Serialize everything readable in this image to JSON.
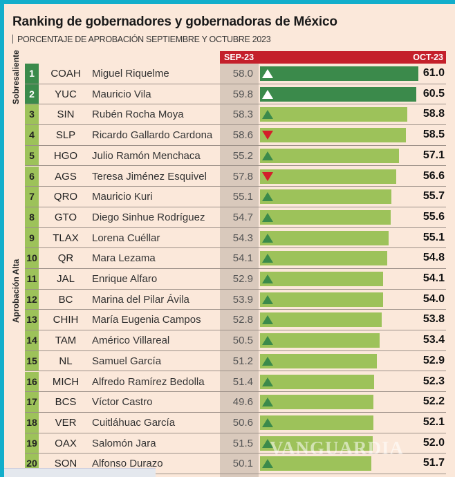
{
  "title": "Ranking de gobernadores y gobernadoras de México",
  "subtitle": "PORCENTAJE DE APROBACIÓN SEPTIEMBRE Y OCTUBRE 2023",
  "watermark": "VANGUARDIA",
  "colors": {
    "sobresaliente": "#3b8a4b",
    "aprobacion_alta": "#9dc25a",
    "header": "#c4202b",
    "up": "#3b8a4b",
    "down": "#d3202a",
    "border": "#12aecb"
  },
  "chart_data": {
    "type": "bar",
    "title": "Ranking de gobernadores y gobernadoras de México",
    "subtitle": "PORCENTAJE DE APROBACIÓN SEPTIEMBRE Y OCTUBRE 2023",
    "columns": [
      "SEP-23",
      "OCT-23"
    ],
    "groups": [
      {
        "label": "Sobresaliente",
        "ranks": [
          1,
          2
        ]
      },
      {
        "label": "Aprobación Alta",
        "ranks": [
          3,
          20
        ]
      }
    ],
    "rows": [
      {
        "rank": "1",
        "state": "COAH",
        "name": "Miguel Riquelme",
        "sep": "58.0",
        "oct": "61.0",
        "trend": "up"
      },
      {
        "rank": "2",
        "state": "YUC",
        "name": "Mauricio Vila",
        "sep": "59.8",
        "oct": "60.5",
        "trend": "up"
      },
      {
        "rank": "3",
        "state": "SIN",
        "name": "Rubén Rocha Moya",
        "sep": "58.3",
        "oct": "58.8",
        "trend": "up"
      },
      {
        "rank": "4",
        "state": "SLP",
        "name": "Ricardo Gallardo Cardona",
        "sep": "58.6",
        "oct": "58.5",
        "trend": "down"
      },
      {
        "rank": "5",
        "state": "HGO",
        "name": "Julio Ramón Menchaca",
        "sep": "55.2",
        "oct": "57.1",
        "trend": "up"
      },
      {
        "rank": "6",
        "state": "AGS",
        "name": "Teresa Jiménez Esquivel",
        "sep": "57.8",
        "oct": "56.6",
        "trend": "down"
      },
      {
        "rank": "7",
        "state": "QRO",
        "name": "Mauricio Kuri",
        "sep": "55.1",
        "oct": "55.7",
        "trend": "up"
      },
      {
        "rank": "8",
        "state": "GTO",
        "name": "Diego Sinhue Rodríguez",
        "sep": "54.7",
        "oct": "55.6",
        "trend": "up"
      },
      {
        "rank": "9",
        "state": "TLAX",
        "name": "Lorena Cuéllar",
        "sep": "54.3",
        "oct": "55.1",
        "trend": "up"
      },
      {
        "rank": "10",
        "state": "QR",
        "name": "Mara Lezama",
        "sep": "54.1",
        "oct": "54.8",
        "trend": "up"
      },
      {
        "rank": "11",
        "state": "JAL",
        "name": "Enrique Alfaro",
        "sep": "52.9",
        "oct": "54.1",
        "trend": "up"
      },
      {
        "rank": "12",
        "state": "BC",
        "name": "Marina del Pilar Ávila",
        "sep": "53.9",
        "oct": "54.0",
        "trend": "up"
      },
      {
        "rank": "13",
        "state": "CHIH",
        "name": "María Eugenia Campos",
        "sep": "52.8",
        "oct": "53.8",
        "trend": "up"
      },
      {
        "rank": "14",
        "state": "TAM",
        "name": "Américo Villareal",
        "sep": "50.5",
        "oct": "53.4",
        "trend": "up"
      },
      {
        "rank": "15",
        "state": "NL",
        "name": "Samuel García",
        "sep": "51.2",
        "oct": "52.9",
        "trend": "up"
      },
      {
        "rank": "16",
        "state": "MICH",
        "name": "Alfredo Ramírez Bedolla",
        "sep": "51.4",
        "oct": "52.3",
        "trend": "up"
      },
      {
        "rank": "17",
        "state": "BCS",
        "name": "Víctor Castro",
        "sep": "49.6",
        "oct": "52.2",
        "trend": "up"
      },
      {
        "rank": "18",
        "state": "VER",
        "name": "Cuitláhuac García",
        "sep": "50.6",
        "oct": "52.1",
        "trend": "up"
      },
      {
        "rank": "19",
        "state": "OAX",
        "name": "Salomón Jara",
        "sep": "51.5",
        "oct": "52.0",
        "trend": "up"
      },
      {
        "rank": "20",
        "state": "SON",
        "name": "Alfonso Durazo",
        "sep": "50.1",
        "oct": "51.7",
        "trend": "up"
      }
    ]
  }
}
